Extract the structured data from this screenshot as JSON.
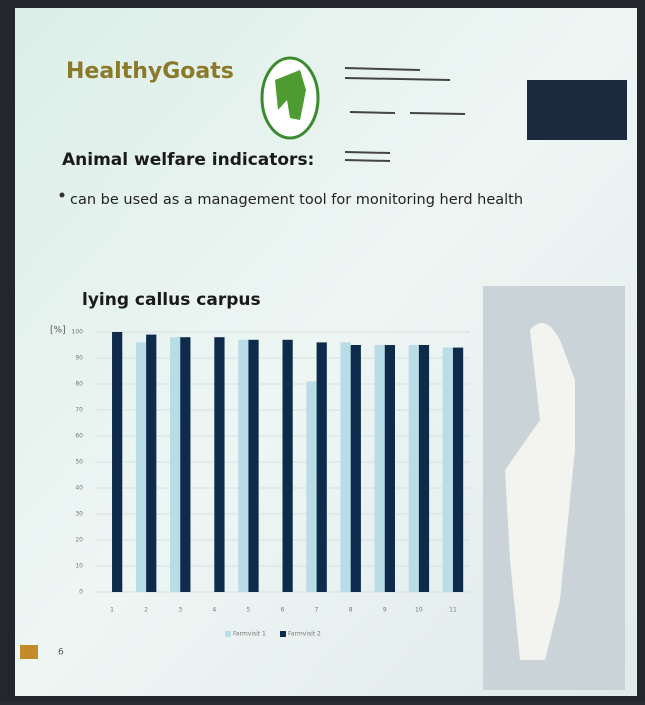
{
  "slide": {
    "brand": "HealthyGoats",
    "heading": "Animal welfare indicators:",
    "bullet": "can be used as a management tool for monitoring herd health",
    "page": "6"
  },
  "chart_data": {
    "type": "bar",
    "title": "lying callus carpus",
    "y_label": "[%]",
    "categories": [
      "1",
      "2",
      "3",
      "4",
      "5",
      "6",
      "7",
      "8",
      "9",
      "10",
      "11"
    ],
    "series": [
      {
        "name": "Farmvisit 1",
        "color": "#b9dde6",
        "values": [
          null,
          96,
          98,
          null,
          97,
          null,
          81,
          96,
          95,
          95,
          94
        ]
      },
      {
        "name": "Farmvisit 2",
        "color": "#0e2b4b",
        "values": [
          100,
          99,
          98,
          98,
          97,
          97,
          96,
          95,
          95,
          95,
          94
        ]
      }
    ],
    "ylim": [
      0,
      100
    ],
    "yticks": [
      0,
      10,
      20,
      30,
      40,
      50,
      60,
      70,
      80,
      90,
      100
    ],
    "grid": true,
    "legend": "bottom"
  }
}
